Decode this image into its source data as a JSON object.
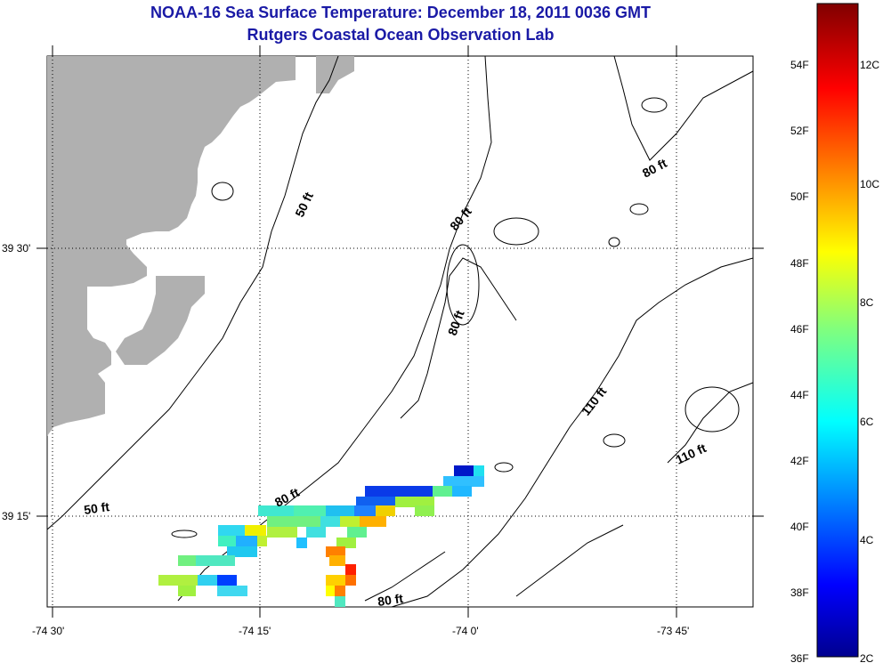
{
  "title": "NOAA-16 Sea Surface Temperature:  December 18, 2011 0036 GMT",
  "subtitle": "Rutgers Coastal Ocean Observation Lab",
  "axes": {
    "x_ticks": [
      "-74 30'",
      "-74 15'",
      "-74 0'",
      "-73 45'"
    ],
    "y_ticks": [
      "39 30'",
      "39 15'"
    ]
  },
  "contour_labels": [
    {
      "text": "50 ft"
    },
    {
      "text": "50 ft"
    },
    {
      "text": "80 ft"
    },
    {
      "text": "80 ft"
    },
    {
      "text": "80 ft"
    },
    {
      "text": "80 ft"
    },
    {
      "text": "80 ft"
    },
    {
      "text": "110 ft"
    },
    {
      "text": "110 ft"
    }
  ],
  "colorbar": {
    "f_labels": [
      "54F",
      "52F",
      "50F",
      "48F",
      "46F",
      "44F",
      "42F",
      "40F",
      "38F",
      "36F"
    ],
    "c_labels": [
      "12C",
      "10C",
      "8C",
      "6C",
      "4C",
      "2C"
    ]
  },
  "colors": {
    "land": "#b0b0b0",
    "title": "#1a1aa6"
  }
}
